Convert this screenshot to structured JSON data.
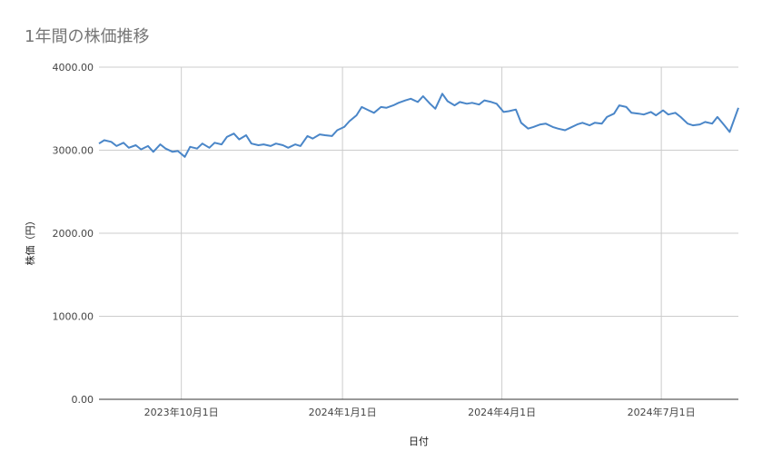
{
  "chart_data": {
    "type": "line",
    "title": "1年間の株価推移",
    "xlabel": "日付",
    "ylabel": "株価（円）",
    "ylim": [
      0,
      4000
    ],
    "y_ticks": [
      "0.00",
      "1000.00",
      "2000.00",
      "3000.00",
      "4000.00"
    ],
    "y_tick_values": [
      0,
      1000,
      2000,
      3000,
      4000
    ],
    "x_range": [
      "2023-08-15",
      "2024-08-14"
    ],
    "x_ticks": [
      "2023年10月1日",
      "2024年1月1日",
      "2024年4月1日",
      "2024年7月1日"
    ],
    "x_tick_dates": [
      "2023-10-01",
      "2024-01-01",
      "2024-04-01",
      "2024-07-01"
    ],
    "grid": true,
    "colors": {
      "line": "#4a86c8",
      "grid": "#cccccc",
      "axis": "#333333"
    },
    "series": [
      {
        "x": [
          "2023-08-15",
          "2023-08-18",
          "2023-08-22",
          "2023-08-25",
          "2023-08-29",
          "2023-09-01",
          "2023-09-05",
          "2023-09-08",
          "2023-09-12",
          "2023-09-15",
          "2023-09-19",
          "2023-09-22",
          "2023-09-26",
          "2023-09-29",
          "2023-10-03",
          "2023-10-06",
          "2023-10-10",
          "2023-10-13",
          "2023-10-17",
          "2023-10-20",
          "2023-10-24",
          "2023-10-27",
          "2023-10-31",
          "2023-11-03",
          "2023-11-07",
          "2023-11-10",
          "2023-11-14",
          "2023-11-17",
          "2023-11-21",
          "2023-11-24",
          "2023-11-28",
          "2023-12-01",
          "2023-12-05",
          "2023-12-08",
          "2023-12-12",
          "2023-12-15",
          "2023-12-19",
          "2023-12-22",
          "2023-12-26",
          "2023-12-29",
          "2024-01-02",
          "2024-01-05",
          "2024-01-09",
          "2024-01-12",
          "2024-01-16",
          "2024-01-19",
          "2024-01-23",
          "2024-01-26",
          "2024-01-30",
          "2024-02-02",
          "2024-02-06",
          "2024-02-09",
          "2024-02-13",
          "2024-02-16",
          "2024-02-20",
          "2024-02-23",
          "2024-02-27",
          "2024-03-01",
          "2024-03-05",
          "2024-03-08",
          "2024-03-12",
          "2024-03-15",
          "2024-03-19",
          "2024-03-22",
          "2024-03-26",
          "2024-03-29",
          "2024-04-02",
          "2024-04-05",
          "2024-04-09",
          "2024-04-12",
          "2024-04-16",
          "2024-04-19",
          "2024-04-23",
          "2024-04-26",
          "2024-04-30",
          "2024-05-03",
          "2024-05-07",
          "2024-05-10",
          "2024-05-14",
          "2024-05-17",
          "2024-05-21",
          "2024-05-24",
          "2024-05-28",
          "2024-05-31",
          "2024-06-04",
          "2024-06-07",
          "2024-06-11",
          "2024-06-14",
          "2024-06-18",
          "2024-06-21",
          "2024-06-25",
          "2024-06-28",
          "2024-07-02",
          "2024-07-05",
          "2024-07-09",
          "2024-07-12",
          "2024-07-16",
          "2024-07-19",
          "2024-07-23",
          "2024-07-26",
          "2024-07-30",
          "2024-08-02",
          "2024-08-06",
          "2024-08-09",
          "2024-08-14"
        ],
        "values": [
          3080,
          3120,
          3100,
          3050,
          3090,
          3030,
          3060,
          3010,
          3050,
          2980,
          3070,
          3020,
          2980,
          2990,
          2920,
          3040,
          3020,
          3080,
          3030,
          3090,
          3070,
          3160,
          3200,
          3130,
          3180,
          3080,
          3060,
          3070,
          3050,
          3080,
          3060,
          3030,
          3070,
          3050,
          3170,
          3140,
          3190,
          3180,
          3170,
          3240,
          3280,
          3350,
          3420,
          3520,
          3480,
          3450,
          3520,
          3510,
          3540,
          3570,
          3600,
          3620,
          3580,
          3650,
          3560,
          3500,
          3680,
          3590,
          3540,
          3580,
          3560,
          3570,
          3550,
          3600,
          3580,
          3560,
          3460,
          3470,
          3490,
          3330,
          3260,
          3280,
          3310,
          3320,
          3280,
          3260,
          3240,
          3270,
          3310,
          3330,
          3300,
          3330,
          3320,
          3400,
          3440,
          3540,
          3520,
          3450,
          3440,
          3430,
          3460,
          3420,
          3480,
          3430,
          3450,
          3400,
          3320,
          3300,
          3310,
          3340,
          3320,
          3400,
          3300,
          3220,
          3510
        ]
      }
    ]
  }
}
